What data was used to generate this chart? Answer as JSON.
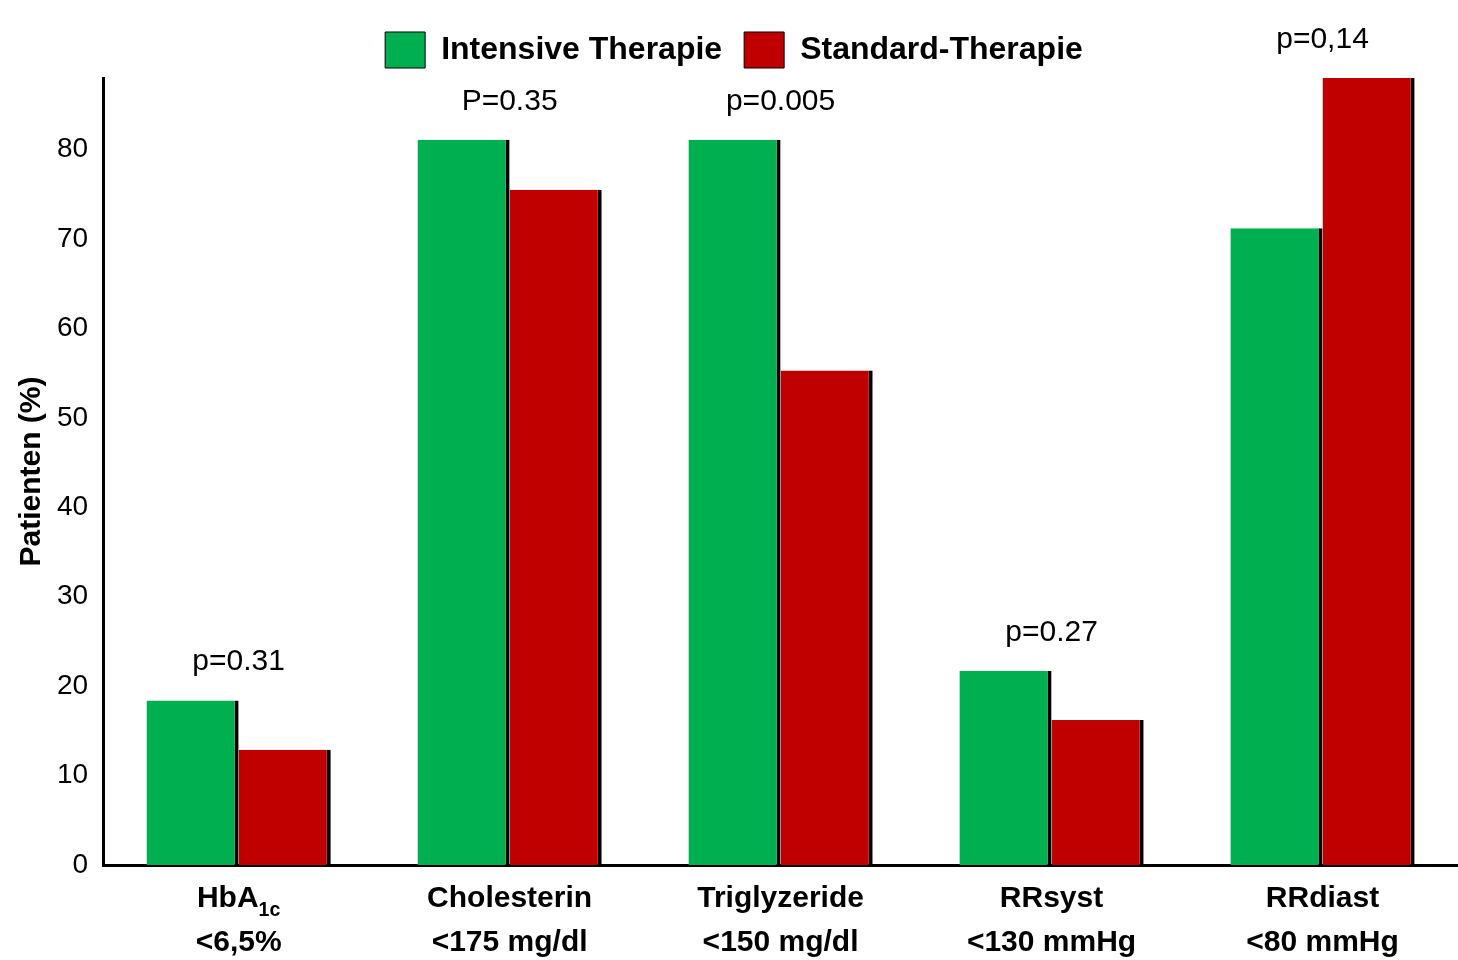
{
  "chart_data": {
    "type": "bar",
    "ylabel": "Patienten (%)",
    "categories": [
      "HbA$_{1c}$\n<6,5%",
      "Cholesterin\n<175 mg/dl",
      "Triglyzeride\n<150 mg/dl",
      "RRsyst\n<130 mmHg",
      "RRdiast\n<80 mmHg"
    ],
    "series": [
      {
        "name": "Intensive Therapie",
        "color": "#00b050",
        "values": [
          18.4,
          81.1,
          81.1,
          21.7,
          71.2
        ]
      },
      {
        "name": "Standard-Therapie",
        "color": "#c00000",
        "values": [
          12.9,
          75.5,
          55.3,
          16.2,
          88.0
        ]
      }
    ],
    "annotations": [
      "p=0.31",
      "P=0.35",
      "p=0.005",
      "p=0.27",
      "p=0,14"
    ],
    "ylim": [
      0,
      88
    ],
    "yticks": [
      0,
      10,
      20,
      30,
      40,
      50,
      60,
      70,
      80
    ],
    "grid": false,
    "legend": "top"
  }
}
